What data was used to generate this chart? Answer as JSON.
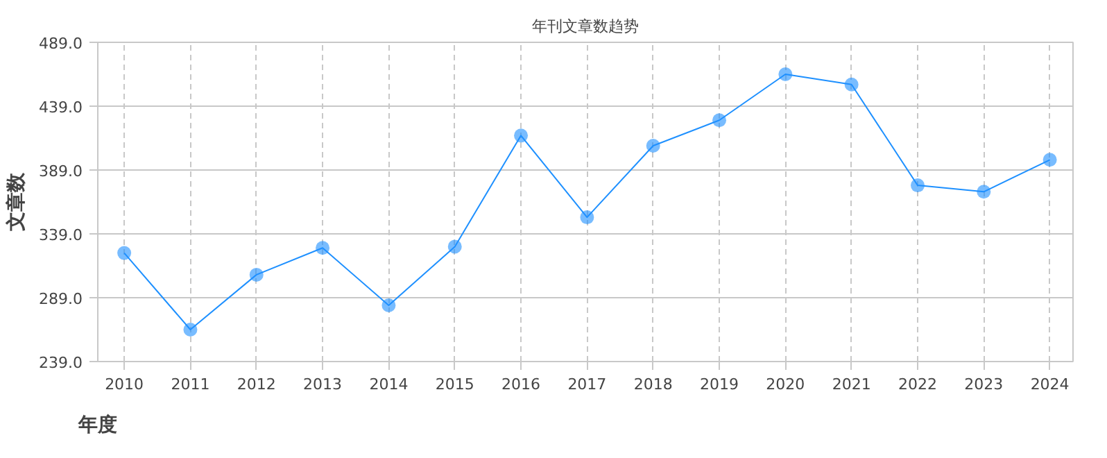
{
  "chart_data": {
    "type": "line",
    "title": "年刊文章数趋势",
    "xlabel": "年度",
    "ylabel": "文章数",
    "categories": [
      "2010",
      "2011",
      "2012",
      "2013",
      "2014",
      "2015",
      "2016",
      "2017",
      "2018",
      "2019",
      "2020",
      "2021",
      "2022",
      "2023",
      "2024"
    ],
    "series": [
      {
        "color": "#1e90ff",
        "values": [
          324,
          264,
          307,
          328,
          283,
          329,
          416,
          352,
          408,
          428,
          464,
          456,
          377,
          372,
          397
        ]
      }
    ],
    "ylim": [
      239,
      489
    ],
    "yticks": [
      {
        "value": 239,
        "label": "239.0"
      },
      {
        "value": 289,
        "label": "289.0"
      },
      {
        "value": 339,
        "label": "339.0"
      },
      {
        "value": 389,
        "label": "389.0"
      },
      {
        "value": 439,
        "label": "439.0"
      },
      {
        "value": 489,
        "label": "489.0"
      }
    ],
    "grid": true,
    "marker": "circle",
    "line_style": "solid"
  }
}
